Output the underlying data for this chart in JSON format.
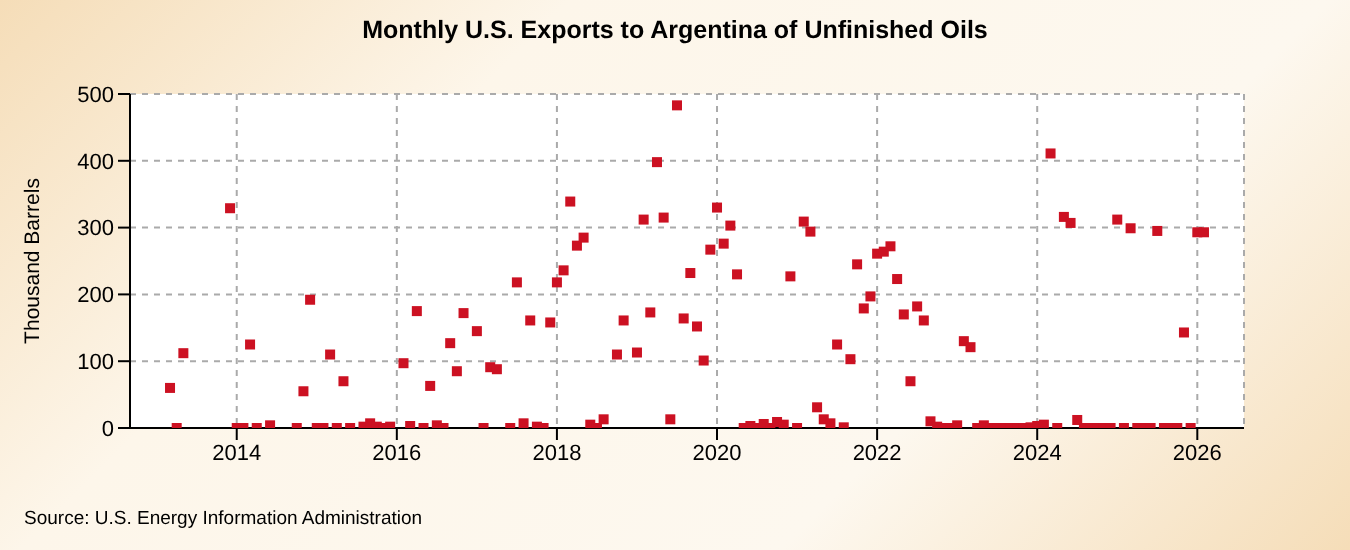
{
  "chart_data": {
    "type": "scatter",
    "title": "Monthly U.S. Exports to Argentina of Unfinished Oils",
    "ylabel": "Thousand Barrels",
    "annotations": [
      "Source: U.S. Energy Information Administration"
    ],
    "x": [
      "2013-03",
      "2013-04",
      "2013-05",
      "2013-12",
      "2014-01",
      "2014-02",
      "2014-03",
      "2014-04",
      "2014-06",
      "2014-10",
      "2014-11",
      "2014-12",
      "2015-01",
      "2015-02",
      "2015-03",
      "2015-04",
      "2015-05",
      "2015-06",
      "2015-08",
      "2015-09",
      "2015-10",
      "2015-11",
      "2015-12",
      "2016-02",
      "2016-03",
      "2016-04",
      "2016-05",
      "2016-06",
      "2016-07",
      "2016-08",
      "2016-09",
      "2016-10",
      "2016-11",
      "2017-01",
      "2017-02",
      "2017-03",
      "2017-04",
      "2017-06",
      "2017-07",
      "2017-08",
      "2017-09",
      "2017-10",
      "2017-11",
      "2017-12",
      "2018-01",
      "2018-02",
      "2018-03",
      "2018-04",
      "2018-05",
      "2018-06",
      "2018-07",
      "2018-08",
      "2018-10",
      "2018-11",
      "2019-01",
      "2019-02",
      "2019-03",
      "2019-04",
      "2019-05",
      "2019-06",
      "2019-07",
      "2019-08",
      "2019-09",
      "2019-10",
      "2019-11",
      "2019-12",
      "2020-01",
      "2020-02",
      "2020-03",
      "2020-04",
      "2020-05",
      "2020-06",
      "2020-07",
      "2020-08",
      "2020-09",
      "2020-10",
      "2020-11",
      "2020-12",
      "2021-01",
      "2021-02",
      "2021-03",
      "2021-04",
      "2021-05",
      "2021-06",
      "2021-07",
      "2021-08",
      "2021-09",
      "2021-10",
      "2021-11",
      "2021-12",
      "2022-01",
      "2022-02",
      "2022-03",
      "2022-04",
      "2022-05",
      "2022-06",
      "2022-07",
      "2022-08",
      "2022-09",
      "2022-10",
      "2022-11",
      "2022-12",
      "2023-01",
      "2023-02",
      "2023-03",
      "2023-04",
      "2023-05",
      "2023-06",
      "2023-07",
      "2023-08",
      "2023-09",
      "2023-10",
      "2023-11",
      "2023-12",
      "2024-01",
      "2024-02",
      "2024-03",
      "2024-04",
      "2024-05",
      "2024-06",
      "2024-07",
      "2024-08",
      "2024-09",
      "2024-10",
      "2024-11",
      "2024-12",
      "2025-01",
      "2025-02",
      "2025-03",
      "2025-04",
      "2025-05",
      "2025-06",
      "2025-07",
      "2025-08",
      "2025-09",
      "2025-10",
      "2025-11",
      "2025-12",
      "2026-01",
      "2026-02"
    ],
    "series": [
      {
        "color": "#cc1122",
        "values": [
          60,
          0,
          112,
          329,
          0,
          0,
          125,
          0,
          4,
          0,
          55,
          192,
          0,
          0,
          110,
          0,
          70,
          0,
          2,
          7,
          2,
          0,
          2,
          97,
          3,
          175,
          0,
          63,
          4,
          0,
          127,
          85,
          172,
          145,
          0,
          91,
          88,
          0,
          218,
          7,
          161,
          2,
          0,
          158,
          218,
          236,
          339,
          273,
          285,
          5,
          0,
          13,
          110,
          161,
          113,
          312,
          173,
          398,
          315,
          13,
          483,
          164,
          232,
          152,
          101,
          267,
          330,
          276,
          303,
          230,
          0,
          3,
          0,
          6,
          0,
          9,
          5,
          227,
          0,
          309,
          294,
          31,
          13,
          7,
          125,
          1,
          103,
          245,
          179,
          197,
          261,
          264,
          272,
          223,
          170,
          70,
          182,
          161,
          10,
          2,
          0,
          0,
          4,
          130,
          121,
          0,
          4,
          0,
          0,
          0,
          0,
          0,
          0,
          1,
          3,
          5,
          411,
          0,
          316,
          307,
          12,
          0,
          0,
          0,
          0,
          0,
          312,
          0,
          299,
          0,
          0,
          0,
          295,
          0,
          0,
          0,
          143,
          0,
          293,
          293
        ]
      }
    ],
    "xlim": [
      "2012-09",
      "2026-08"
    ],
    "xticks": [
      "2014",
      "2016",
      "2018",
      "2020",
      "2022",
      "2024",
      "2026"
    ],
    "ylim": [
      0,
      500
    ],
    "yticks": [
      0,
      100,
      200,
      300,
      400,
      500
    ],
    "grid": true,
    "marker": "square"
  }
}
